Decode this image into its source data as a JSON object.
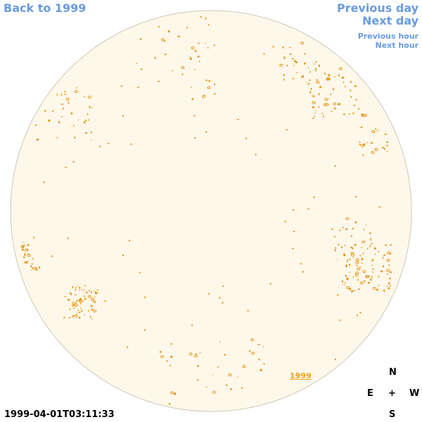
{
  "nav": {
    "back": "Back to 1999",
    "previous_day": "Previous day",
    "next_day": "Next day",
    "previous_hour": "Previous hour",
    "next_hour": "Next hour"
  },
  "disk_label": "1999",
  "compass": {
    "north": "N",
    "east": "E",
    "center": "+",
    "west": "W",
    "south": "S"
  },
  "timestamp": "1999-04-01T03:11:33"
}
